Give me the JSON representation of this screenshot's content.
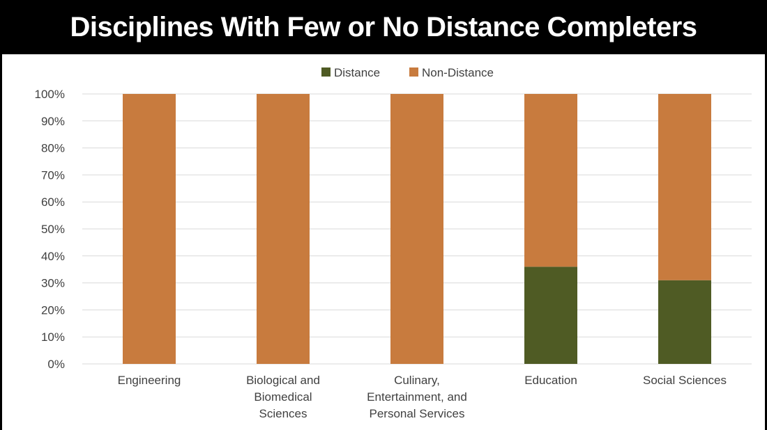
{
  "title": "Disciplines With Few or No Distance Completers",
  "colors": {
    "distance": "#4F5B24",
    "non_distance": "#C87B3E",
    "grid": "#D9D9D9",
    "axis_text": "#404040"
  },
  "chart_data": {
    "type": "bar",
    "stacked": true,
    "categories": [
      [
        "Engineering"
      ],
      [
        "Biological and",
        "Biomedical",
        "Sciences"
      ],
      [
        "Culinary,",
        "Entertainment, and",
        "Personal Services"
      ],
      [
        "Education"
      ],
      [
        "Social Sciences"
      ]
    ],
    "series": [
      {
        "name": "Distance",
        "values": [
          0,
          0,
          0,
          36,
          31
        ]
      },
      {
        "name": "Non-Distance",
        "values": [
          100,
          100,
          100,
          64,
          69
        ]
      }
    ],
    "ylim": [
      0,
      100
    ],
    "yticks": [
      0,
      10,
      20,
      30,
      40,
      50,
      60,
      70,
      80,
      90,
      100
    ],
    "ytick_labels": [
      "0%",
      "10%",
      "20%",
      "30%",
      "40%",
      "50%",
      "60%",
      "70%",
      "80%",
      "90%",
      "100%"
    ],
    "xlabel": "",
    "ylabel": "",
    "legend": "top-center",
    "grid": true
  }
}
